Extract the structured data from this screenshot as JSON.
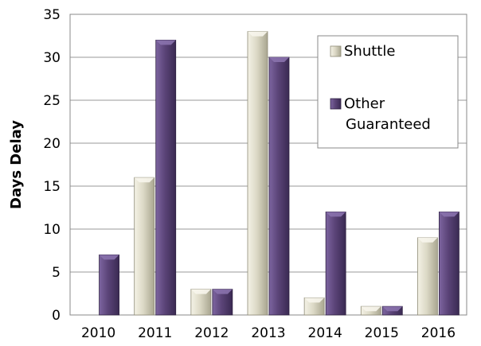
{
  "chart_data": {
    "type": "bar",
    "title": "",
    "xlabel": "",
    "ylabel": "Days Delay",
    "categories": [
      "2010",
      "2011",
      "2012",
      "2013",
      "2014",
      "2015",
      "2016"
    ],
    "series": [
      {
        "name": "Shuttle",
        "values": [
          0,
          16,
          3,
          33,
          2,
          1,
          9
        ],
        "color": "#d8d5c2"
      },
      {
        "name": "Other Guaranteed",
        "values": [
          7,
          32,
          3,
          30,
          12,
          1,
          12
        ],
        "color": "#5b4478"
      }
    ],
    "legend_lines": [
      [
        "Shuttle"
      ],
      [
        "Other",
        "Guaranteed"
      ]
    ],
    "ylim": [
      0,
      35
    ],
    "yticks": [
      0,
      5,
      10,
      15,
      20,
      25,
      30,
      35
    ],
    "grid": true,
    "legend_position": "top-right"
  }
}
